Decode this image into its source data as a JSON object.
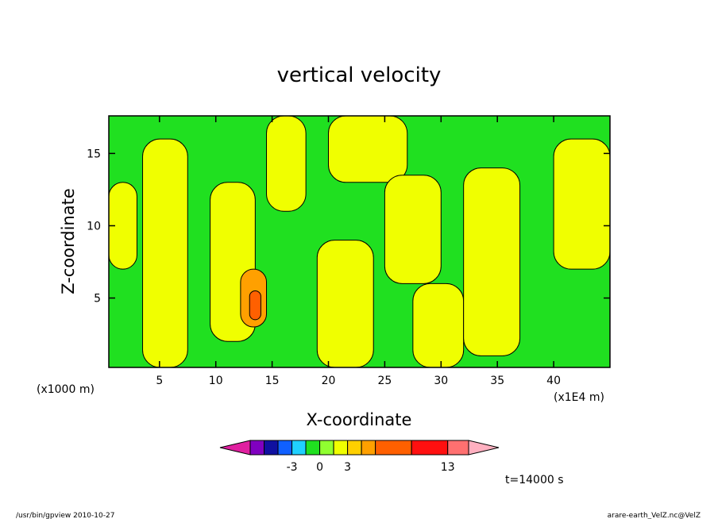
{
  "chart_data": {
    "type": "heatmap",
    "title": "vertical velocity",
    "xlabel": "X-coordinate",
    "ylabel": "Z-coordinate",
    "x_unit_left": "(x1000 m)",
    "x_unit_right": "(x1E4 m)",
    "xlim": [
      0.5,
      45
    ],
    "ylim": [
      0.2,
      17.6
    ],
    "x_ticks": [
      5,
      10,
      15,
      20,
      25,
      30,
      35,
      40
    ],
    "y_ticks": [
      5,
      10,
      15
    ],
    "x_tick_labels": [
      "5",
      "10",
      "15",
      "20",
      "25",
      "30",
      "35",
      "40"
    ],
    "y_tick_labels": [
      "5",
      "10",
      "15"
    ],
    "colorbar": {
      "colors": [
        "#e020a0",
        "#8000c0",
        "#1010a0",
        "#1060ff",
        "#20d0ff",
        "#20e020",
        "#90ff30",
        "#f0ff00",
        "#ffd000",
        "#ffa000",
        "#ff6000",
        "#ff1010",
        "#ff7070",
        "#ffb0c0"
      ],
      "tick_labels": [
        "-3",
        "0",
        "3",
        "13"
      ],
      "tick_boundaries": [
        3,
        5,
        7,
        11
      ]
    },
    "regions": [
      {
        "level": "positive",
        "color": "#f0ff00",
        "x_range": [
          0.5,
          3.0
        ],
        "z_range": [
          7,
          13
        ]
      },
      {
        "level": "positive",
        "color": "#f0ff00",
        "x_range": [
          3.5,
          7.5
        ],
        "z_range": [
          0.2,
          16
        ]
      },
      {
        "level": "positive",
        "color": "#f0ff00",
        "x_range": [
          9.5,
          13.5
        ],
        "z_range": [
          2,
          13
        ]
      },
      {
        "level": "positive",
        "color": "#f0ff00",
        "x_range": [
          14.5,
          18
        ],
        "z_range": [
          11,
          17.6
        ]
      },
      {
        "level": "positive",
        "color": "#f0ff00",
        "x_range": [
          19,
          24
        ],
        "z_range": [
          0.2,
          9
        ]
      },
      {
        "level": "positive",
        "color": "#f0ff00",
        "x_range": [
          20,
          27
        ],
        "z_range": [
          13,
          17.6
        ]
      },
      {
        "level": "positive",
        "color": "#f0ff00",
        "x_range": [
          25,
          30
        ],
        "z_range": [
          6,
          13.5
        ]
      },
      {
        "level": "positive",
        "color": "#f0ff00",
        "x_range": [
          27.5,
          32
        ],
        "z_range": [
          0.2,
          6
        ]
      },
      {
        "level": "positive",
        "color": "#f0ff00",
        "x_range": [
          32,
          37
        ],
        "z_range": [
          1,
          14
        ]
      },
      {
        "level": "positive",
        "color": "#f0ff00",
        "x_range": [
          40,
          45
        ],
        "z_range": [
          7,
          16
        ]
      },
      {
        "level": "strong",
        "color": "#ffa000",
        "x_range": [
          12.2,
          14.5
        ],
        "z_range": [
          3,
          7
        ]
      },
      {
        "level": "strong",
        "color": "#ff6000",
        "x_range": [
          13.0,
          14.0
        ],
        "z_range": [
          3.5,
          5.5
        ]
      }
    ],
    "annotation": "t=14000 s"
  },
  "footer": {
    "left": "/usr/bin/gpview   2010-10-27",
    "right": "arare-earth_VelZ.nc@VelZ"
  }
}
